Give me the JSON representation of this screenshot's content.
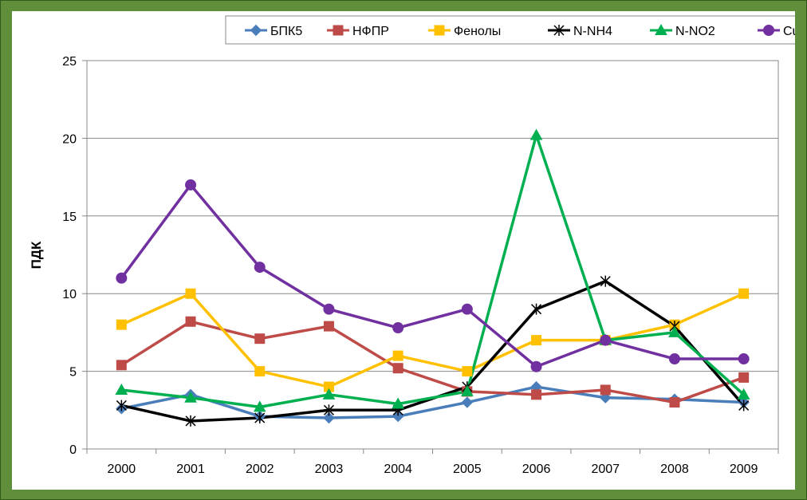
{
  "chart_data": {
    "type": "line",
    "title": "",
    "xlabel": "",
    "ylabel": "ПДК",
    "ylim": [
      0,
      25
    ],
    "yticks": [
      0,
      5,
      10,
      15,
      20,
      25
    ],
    "grid": "horizontal",
    "legend_position": "top",
    "categories": [
      "2000",
      "2001",
      "2002",
      "2003",
      "2004",
      "2005",
      "2006",
      "2007",
      "2008",
      "2009"
    ],
    "series": [
      {
        "name": "БПК5",
        "color": "#4a7ebb",
        "marker": "diamond",
        "values": [
          2.6,
          3.5,
          2.1,
          2.0,
          2.1,
          3.0,
          4.0,
          3.3,
          3.2,
          3.0
        ]
      },
      {
        "name": "НФПР",
        "color": "#be4b48",
        "marker": "square",
        "values": [
          5.4,
          8.2,
          7.1,
          7.9,
          5.2,
          3.7,
          3.5,
          3.8,
          3.0,
          4.6
        ]
      },
      {
        "name": "Фенолы",
        "color": "#ffc000",
        "marker": "square",
        "values": [
          8.0,
          10.0,
          5.0,
          4.0,
          6.0,
          5.0,
          7.0,
          7.0,
          8.0,
          10.0
        ]
      },
      {
        "name": "N-NH4",
        "color": "#000000",
        "marker": "star",
        "values": [
          2.8,
          1.8,
          2.0,
          2.5,
          2.5,
          4.0,
          9.0,
          10.8,
          7.9,
          2.8
        ]
      },
      {
        "name": "N-NO2",
        "color": "#00b050",
        "marker": "triangle",
        "values": [
          3.8,
          3.3,
          2.7,
          3.5,
          2.9,
          3.7,
          20.2,
          7.0,
          7.5,
          3.5
        ]
      },
      {
        "name": "Cu",
        "color": "#7030a0",
        "marker": "circle",
        "values": [
          11.0,
          17.0,
          11.7,
          9.0,
          7.8,
          9.0,
          5.3,
          7.0,
          5.8,
          5.8
        ]
      }
    ]
  }
}
